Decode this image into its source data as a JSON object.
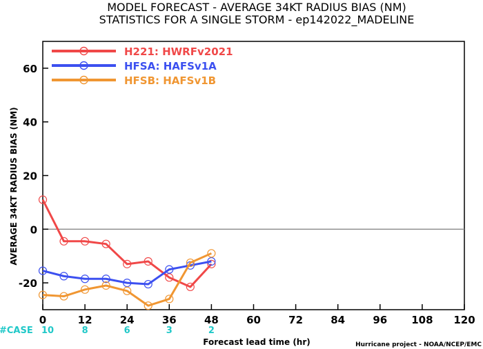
{
  "chart_data": {
    "type": "line",
    "title": "MODEL FORECAST - AVERAGE 34KT RADIUS BIAS (NM)",
    "subtitle": "STATISTICS FOR A SINGLE STORM - ep142022_MADELINE",
    "xlabel": "Forecast lead time (hr)",
    "ylabel": "AVERAGE 34KT RADIUS BIAS (NM)",
    "xlim": [
      0,
      120
    ],
    "ylim": [
      -30,
      70
    ],
    "x_ticks": [
      "0",
      "12",
      "24",
      "36",
      "48",
      "60",
      "72",
      "84",
      "96",
      "108",
      "120"
    ],
    "y_ticks": [
      "60",
      "40",
      "20",
      "0",
      "-20"
    ],
    "reference_line": 0,
    "legend_position": "top-left",
    "series": [
      {
        "name": "H221: HWRFv2021",
        "color": "#f04848",
        "x": [
          0,
          6,
          12,
          18,
          24,
          30,
          36,
          42,
          48
        ],
        "y": [
          11,
          -4.5,
          -4.5,
          -5.5,
          -13,
          -12,
          -18,
          -21.5,
          -13
        ]
      },
      {
        "name": "HFSA: HAFSv1A",
        "color": "#3c50f0",
        "x": [
          0,
          6,
          12,
          18,
          24,
          30,
          36,
          42,
          48
        ],
        "y": [
          -15.5,
          -17.5,
          -18.5,
          -18.5,
          -20,
          -20.5,
          -15,
          -13.5,
          -12
        ]
      },
      {
        "name": "HFSB: HAFSv1B",
        "color": "#f09632",
        "x": [
          0,
          6,
          12,
          18,
          24,
          30,
          36,
          42,
          48
        ],
        "y": [
          -24.5,
          -25,
          -22.5,
          -21,
          -23,
          -28.5,
          -26,
          -12.5,
          -9
        ]
      }
    ],
    "case_counts": {
      "label": "#CASE",
      "x": [
        0,
        12,
        24,
        36,
        48
      ],
      "values": [
        "10",
        "8",
        "6",
        "3",
        "2"
      ]
    },
    "credit": "Hurricane project - NOAA/NCEP/EMC"
  }
}
